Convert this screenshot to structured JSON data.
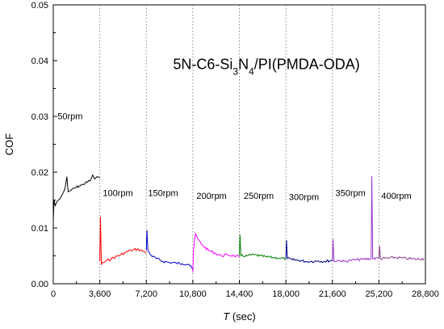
{
  "chart_data": {
    "type": "line",
    "title": {
      "segments": [
        {
          "text": "5N-C6-Si",
          "sub": false
        },
        {
          "text": "3",
          "sub": true
        },
        {
          "text": "N",
          "sub": false
        },
        {
          "text": "4",
          "sub": true
        },
        {
          "text": "/PI(PMDA-ODA)",
          "sub": false
        }
      ]
    },
    "xlabel": {
      "italic": "T",
      "rest": " (sec)"
    },
    "ylabel": "COF",
    "xlim": [
      0,
      28800
    ],
    "ylim": [
      0,
      0.05
    ],
    "x_ticks": [
      0,
      3600,
      7200,
      10800,
      14400,
      18000,
      21600,
      25200,
      28800
    ],
    "x_tick_labels": [
      "0",
      "3,600",
      "7,200",
      "10,800",
      "14,400",
      "18,000",
      "21,600",
      "25,200",
      "28,800"
    ],
    "y_ticks": [
      0,
      0.01,
      0.02,
      0.03,
      0.04,
      0.05
    ],
    "y_tick_labels": [
      "0.00",
      "0.01",
      "0.02",
      "0.03",
      "0.04",
      "0.05"
    ],
    "dividers": [
      3600,
      7200,
      10800,
      14400,
      18000,
      21600,
      25200
    ],
    "grid": false,
    "series": [
      {
        "name": "50rpm",
        "color": "#000000",
        "points": [
          [
            0,
            0.0115
          ],
          [
            60,
            0.015
          ],
          [
            150,
            0.014
          ],
          [
            300,
            0.0148
          ],
          [
            500,
            0.0152
          ],
          [
            700,
            0.016
          ],
          [
            900,
            0.017
          ],
          [
            1050,
            0.0192
          ],
          [
            1150,
            0.0165
          ],
          [
            1400,
            0.0168
          ],
          [
            1700,
            0.0172
          ],
          [
            2000,
            0.0175
          ],
          [
            2300,
            0.0178
          ],
          [
            2600,
            0.0182
          ],
          [
            2900,
            0.0186
          ],
          [
            3050,
            0.0195
          ],
          [
            3200,
            0.0188
          ],
          [
            3400,
            0.0192
          ],
          [
            3600,
            0.019
          ]
        ]
      },
      {
        "name": "100rpm",
        "color": "#ff0000",
        "points": [
          [
            3600,
            0.004
          ],
          [
            3650,
            0.012
          ],
          [
            3720,
            0.0035
          ],
          [
            4000,
            0.004
          ],
          [
            4500,
            0.0045
          ],
          [
            5000,
            0.005
          ],
          [
            5500,
            0.0055
          ],
          [
            6000,
            0.006
          ],
          [
            6500,
            0.0062
          ],
          [
            7000,
            0.0058
          ],
          [
            7200,
            0.0055
          ]
        ]
      },
      {
        "name": "150rpm",
        "color": "#0000cc",
        "points": [
          [
            7200,
            0.006
          ],
          [
            7250,
            0.0096
          ],
          [
            7320,
            0.006
          ],
          [
            7600,
            0.005
          ],
          [
            8000,
            0.0045
          ],
          [
            8500,
            0.004
          ],
          [
            9000,
            0.0038
          ],
          [
            9500,
            0.0037
          ],
          [
            10000,
            0.0036
          ],
          [
            10500,
            0.0035
          ],
          [
            10800,
            0.0025
          ]
        ]
      },
      {
        "name": "200rpm",
        "color": "#ff00ff",
        "points": [
          [
            10800,
            0.002
          ],
          [
            10850,
            0.006
          ],
          [
            11000,
            0.009
          ],
          [
            11200,
            0.008
          ],
          [
            11500,
            0.007
          ],
          [
            12000,
            0.006
          ],
          [
            12500,
            0.0055
          ],
          [
            13000,
            0.005
          ],
          [
            13500,
            0.0052
          ],
          [
            14000,
            0.005
          ],
          [
            14400,
            0.0048
          ]
        ]
      },
      {
        "name": "250rpm",
        "color": "#008000",
        "points": [
          [
            14400,
            0.005
          ],
          [
            14450,
            0.0088
          ],
          [
            14520,
            0.005
          ],
          [
            15000,
            0.005
          ],
          [
            15500,
            0.0052
          ],
          [
            16000,
            0.005
          ],
          [
            16500,
            0.0048
          ],
          [
            17000,
            0.0047
          ],
          [
            17500,
            0.0046
          ],
          [
            18000,
            0.0045
          ]
        ]
      },
      {
        "name": "300rpm",
        "color": "#00008b",
        "points": [
          [
            18000,
            0.0045
          ],
          [
            18050,
            0.0078
          ],
          [
            18120,
            0.0045
          ],
          [
            18500,
            0.0043
          ],
          [
            19000,
            0.0042
          ],
          [
            19500,
            0.004
          ],
          [
            20000,
            0.004
          ],
          [
            20500,
            0.0041
          ],
          [
            21000,
            0.004
          ],
          [
            21600,
            0.0042
          ]
        ]
      },
      {
        "name": "350rpm",
        "color": "#9933cc",
        "points": [
          [
            21600,
            0.004
          ],
          [
            21650,
            0.008
          ],
          [
            21720,
            0.004
          ],
          [
            22000,
            0.0042
          ],
          [
            22500,
            0.004
          ],
          [
            23000,
            0.0042
          ],
          [
            23500,
            0.0043
          ],
          [
            24000,
            0.0044
          ],
          [
            24600,
            0.0045
          ],
          [
            24650,
            0.0193
          ],
          [
            24720,
            0.0045
          ],
          [
            25200,
            0.0046
          ]
        ]
      },
      {
        "name": "400rpm",
        "color": "#8b3a8b",
        "points": [
          [
            25200,
            0.0045
          ],
          [
            25250,
            0.0068
          ],
          [
            25320,
            0.0045
          ],
          [
            26000,
            0.0046
          ],
          [
            26500,
            0.0047
          ],
          [
            27000,
            0.0046
          ],
          [
            27500,
            0.0045
          ],
          [
            28000,
            0.0044
          ],
          [
            28700,
            0.0045
          ]
        ]
      }
    ],
    "annotations": [
      {
        "text": "50rpm",
        "x": 1300,
        "y": 0.0295
      },
      {
        "text": "100rpm",
        "x": 5000,
        "y": 0.0157
      },
      {
        "text": "150rpm",
        "x": 8500,
        "y": 0.0157
      },
      {
        "text": "200rpm",
        "x": 12250,
        "y": 0.0152
      },
      {
        "text": "250rpm",
        "x": 15900,
        "y": 0.0152
      },
      {
        "text": "300rpm",
        "x": 19400,
        "y": 0.015
      },
      {
        "text": "350rpm",
        "x": 23000,
        "y": 0.0157
      },
      {
        "text": "400rpm",
        "x": 26550,
        "y": 0.0152
      }
    ]
  }
}
